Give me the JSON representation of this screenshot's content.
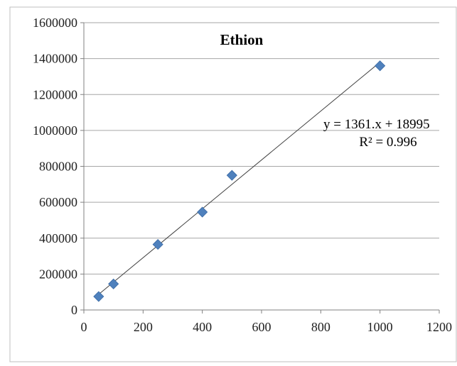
{
  "chart_data": {
    "type": "scatter",
    "title": "Ethion",
    "xlabel": "",
    "ylabel": "",
    "xlim": [
      0,
      1200
    ],
    "ylim": [
      0,
      1600000
    ],
    "x_ticks": [
      0,
      200,
      400,
      600,
      800,
      1000,
      1200
    ],
    "y_ticks": [
      0,
      200000,
      400000,
      600000,
      800000,
      1000000,
      1200000,
      1400000,
      1600000
    ],
    "x_tick_labels": [
      "0",
      "200",
      "400",
      "600",
      "800",
      "1000",
      "1200"
    ],
    "y_tick_labels": [
      "0",
      "200000",
      "400000",
      "600000",
      "800000",
      "1000000",
      "1200000",
      "1400000",
      "1600000"
    ],
    "grid": {
      "horizontal": true,
      "vertical": false
    },
    "series": [
      {
        "x": [
          50,
          100,
          250,
          400,
          500,
          1000
        ],
        "y": [
          75000,
          145000,
          365000,
          545000,
          750000,
          1360000
        ],
        "marker": "diamond",
        "color": "#4f81bd"
      }
    ],
    "trendline": {
      "slope": 1361,
      "intercept": 18995,
      "x_range": [
        50,
        1000
      ],
      "color": "#404040"
    },
    "annotations": {
      "equation": "y = 1361.x + 18995",
      "r_squared": "R² = 0.996"
    }
  }
}
